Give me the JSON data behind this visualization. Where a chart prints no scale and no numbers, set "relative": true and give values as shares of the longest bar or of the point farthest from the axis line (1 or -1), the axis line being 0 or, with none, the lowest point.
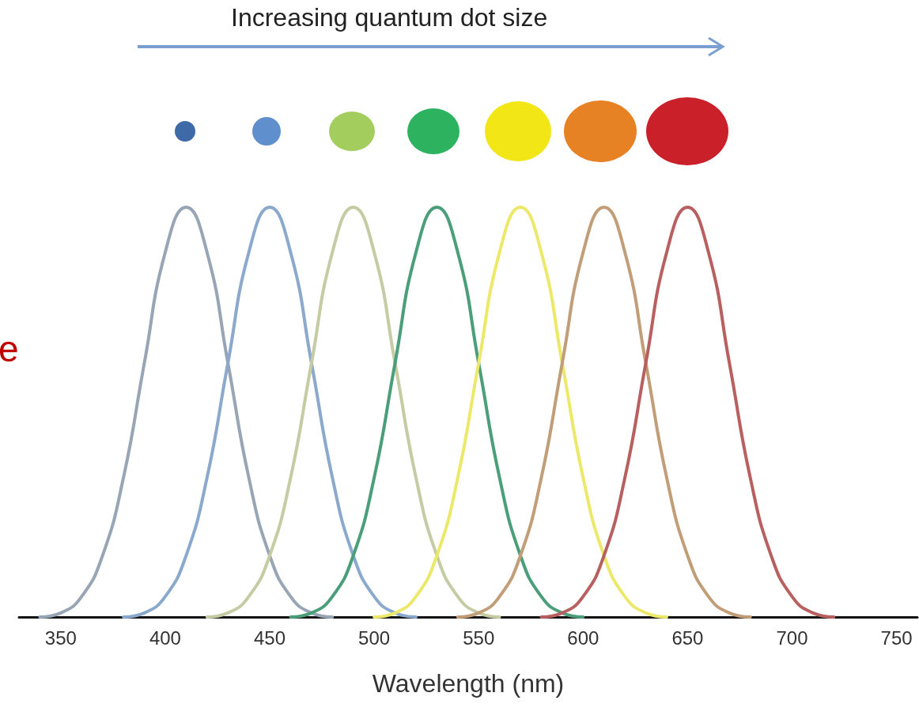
{
  "chart_data": {
    "type": "line",
    "xlabel": "Wavelength (nm)",
    "annotations": [
      "Increasing quantum dot size",
      "e"
    ],
    "relative": true,
    "xlim": [
      330,
      760
    ],
    "xticks": [
      350,
      400,
      450,
      500,
      550,
      600,
      650,
      700,
      750
    ],
    "grid": false,
    "marker": "none",
    "line_style": "solid",
    "series": [
      {
        "color": "#97a5b4",
        "x": [
          340,
          350,
          360,
          370,
          380,
          390,
          400,
          410,
          420,
          430,
          440,
          450,
          460,
          470,
          480
        ],
        "values": [
          0,
          0.01,
          0.05,
          0.15,
          0.34,
          0.62,
          0.89,
          1,
          0.89,
          0.62,
          0.34,
          0.15,
          0.05,
          0.01,
          0
        ]
      },
      {
        "color": "#8aa9cc",
        "x": [
          380,
          390,
          400,
          410,
          420,
          430,
          440,
          450,
          460,
          470,
          480,
          490,
          500,
          510,
          520
        ],
        "values": [
          0,
          0.01,
          0.05,
          0.15,
          0.34,
          0.62,
          0.89,
          1,
          0.89,
          0.62,
          0.34,
          0.15,
          0.05,
          0.01,
          0
        ]
      },
      {
        "color": "#c5cba3",
        "x": [
          420,
          430,
          440,
          450,
          460,
          470,
          480,
          490,
          500,
          510,
          520,
          530,
          540,
          550,
          560
        ],
        "values": [
          0,
          0.01,
          0.05,
          0.15,
          0.34,
          0.62,
          0.89,
          1,
          0.89,
          0.62,
          0.34,
          0.15,
          0.05,
          0.01,
          0
        ]
      },
      {
        "color": "#4a9e7a",
        "x": [
          460,
          470,
          480,
          490,
          500,
          510,
          520,
          530,
          540,
          550,
          560,
          570,
          580,
          590,
          600
        ],
        "values": [
          0,
          0.01,
          0.05,
          0.15,
          0.34,
          0.62,
          0.89,
          1,
          0.89,
          0.62,
          0.34,
          0.15,
          0.05,
          0.01,
          0
        ]
      },
      {
        "color": "#ece96a",
        "x": [
          500,
          510,
          520,
          530,
          540,
          550,
          560,
          570,
          580,
          590,
          600,
          610,
          620,
          630,
          640
        ],
        "values": [
          0,
          0.01,
          0.05,
          0.15,
          0.34,
          0.62,
          0.89,
          1,
          0.89,
          0.62,
          0.34,
          0.15,
          0.05,
          0.01,
          0
        ]
      },
      {
        "color": "#c29e78",
        "x": [
          540,
          550,
          560,
          570,
          580,
          590,
          600,
          610,
          620,
          630,
          640,
          650,
          660,
          670,
          680
        ],
        "values": [
          0,
          0.01,
          0.05,
          0.15,
          0.34,
          0.62,
          0.89,
          1,
          0.89,
          0.62,
          0.34,
          0.15,
          0.05,
          0.01,
          0
        ]
      },
      {
        "color": "#b86060",
        "x": [
          580,
          590,
          600,
          610,
          620,
          630,
          640,
          650,
          660,
          670,
          680,
          690,
          700,
          710,
          720
        ],
        "values": [
          0,
          0.01,
          0.05,
          0.15,
          0.34,
          0.62,
          0.89,
          1,
          0.89,
          0.62,
          0.34,
          0.15,
          0.05,
          0.01,
          0
        ]
      }
    ]
  }
}
